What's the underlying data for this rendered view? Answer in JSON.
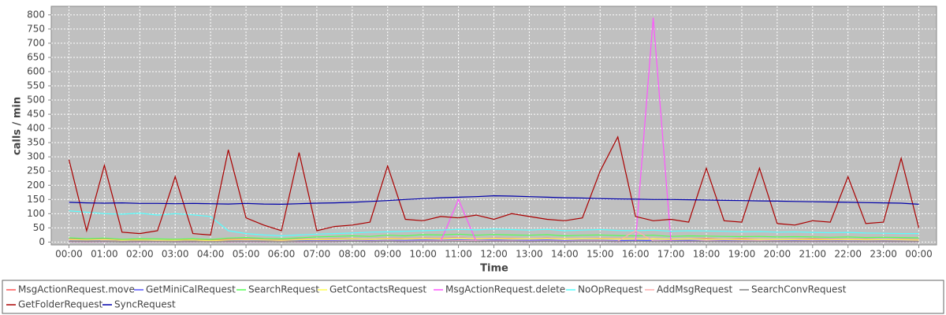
{
  "chart_data": {
    "type": "line",
    "ylabel": "calls / min",
    "xlabel": "Time",
    "x": [
      0,
      0.5,
      1,
      1.5,
      2,
      2.5,
      3,
      3.5,
      4,
      4.5,
      5,
      5.5,
      6,
      6.5,
      7,
      7.5,
      8,
      8.5,
      9,
      9.5,
      10,
      10.5,
      11,
      11.5,
      12,
      12.5,
      13,
      13.5,
      14,
      14.5,
      15,
      15.5,
      16,
      16.5,
      17,
      17.5,
      18,
      18.5,
      19,
      19.5,
      20,
      20.5,
      21,
      21.5,
      22,
      22.5,
      23,
      23.5,
      24
    ],
    "xlim": [
      -0.5,
      24.5
    ],
    "xticks": [
      {
        "value": 0,
        "label": "00:00"
      },
      {
        "value": 1,
        "label": "01:00"
      },
      {
        "value": 2,
        "label": "02:00"
      },
      {
        "value": 3,
        "label": "03:00"
      },
      {
        "value": 4,
        "label": "04:00"
      },
      {
        "value": 5,
        "label": "05:00"
      },
      {
        "value": 6,
        "label": "06:00"
      },
      {
        "value": 7,
        "label": "07:00"
      },
      {
        "value": 8,
        "label": "08:00"
      },
      {
        "value": 9,
        "label": "09:00"
      },
      {
        "value": 10,
        "label": "10:00"
      },
      {
        "value": 11,
        "label": "11:00"
      },
      {
        "value": 12,
        "label": "12:00"
      },
      {
        "value": 13,
        "label": "13:00"
      },
      {
        "value": 14,
        "label": "14:00"
      },
      {
        "value": 15,
        "label": "15:00"
      },
      {
        "value": 16,
        "label": "16:00"
      },
      {
        "value": 17,
        "label": "17:00"
      },
      {
        "value": 18,
        "label": "18:00"
      },
      {
        "value": 19,
        "label": "19:00"
      },
      {
        "value": 20,
        "label": "20:00"
      },
      {
        "value": 21,
        "label": "21:00"
      },
      {
        "value": 22,
        "label": "22:00"
      },
      {
        "value": 23,
        "label": "23:00"
      },
      {
        "value": 24,
        "label": "00:00"
      }
    ],
    "ylim": [
      -10,
      830
    ],
    "yticks": [
      0,
      50,
      100,
      150,
      200,
      250,
      300,
      350,
      400,
      450,
      500,
      550,
      600,
      650,
      700,
      750,
      800
    ],
    "grid": true,
    "series": [
      {
        "name": "MsgActionRequest.move",
        "color": "#ff5555",
        "values": [
          10,
          8,
          9,
          7,
          8,
          6,
          7,
          8,
          6,
          9,
          10,
          8,
          7,
          9,
          10,
          11,
          12,
          10,
          13,
          12,
          14,
          13,
          15,
          12,
          14,
          13,
          12,
          14,
          11,
          12,
          13,
          12,
          11,
          12,
          10,
          11,
          12,
          10,
          11,
          10,
          9,
          10,
          11,
          9,
          10,
          9,
          8,
          9,
          8
        ]
      },
      {
        "name": "GetMiniCalRequest",
        "color": "#5555ff",
        "values": [
          5,
          4,
          5,
          3,
          4,
          4,
          3,
          4,
          3,
          4,
          5,
          4,
          3,
          4,
          5,
          5,
          6,
          5,
          6,
          6,
          7,
          6,
          7,
          6,
          7,
          6,
          6,
          7,
          5,
          6,
          6,
          5,
          6,
          5,
          5,
          6,
          5,
          5,
          4,
          5,
          4,
          5,
          4,
          5,
          4,
          4,
          5,
          4,
          4
        ]
      },
      {
        "name": "SearchRequest",
        "color": "#55ff55",
        "values": [
          15,
          12,
          14,
          10,
          12,
          11,
          10,
          12,
          9,
          14,
          16,
          13,
          12,
          15,
          18,
          20,
          22,
          20,
          24,
          22,
          26,
          25,
          28,
          24,
          27,
          25,
          24,
          26,
          22,
          24,
          25,
          23,
          22,
          24,
          20,
          22,
          21,
          20,
          19,
          20,
          18,
          19,
          18,
          17,
          18,
          16,
          17,
          16,
          15
        ]
      },
      {
        "name": "GetContactsRequest",
        "color": "#ffff55",
        "values": [
          8,
          7,
          8,
          6,
          7,
          6,
          6,
          7,
          5,
          7,
          8,
          7,
          6,
          8,
          9,
          10,
          11,
          10,
          12,
          11,
          13,
          12,
          14,
          12,
          13,
          12,
          12,
          13,
          11,
          12,
          12,
          11,
          11,
          12,
          10,
          11,
          10,
          10,
          9,
          10,
          9,
          9,
          9,
          8,
          9,
          8,
          8,
          8,
          7
        ]
      },
      {
        "name": "MsgActionRequest.delete",
        "color": "#ff55ff",
        "values": [
          2,
          1,
          2,
          1,
          1,
          2,
          1,
          1,
          2,
          1,
          2,
          1,
          2,
          1,
          2,
          2,
          3,
          2,
          3,
          2,
          3,
          3,
          150,
          3,
          3,
          3,
          2,
          3,
          2,
          3,
          3,
          2,
          3,
          790,
          3,
          2,
          3,
          2,
          2,
          3,
          2,
          2,
          2,
          2,
          2,
          2,
          2,
          2,
          2
        ]
      },
      {
        "name": "NoOpRequest",
        "color": "#55ffff",
        "values": [
          110,
          105,
          100,
          98,
          102,
          95,
          100,
          96,
          90,
          40,
          30,
          25,
          22,
          25,
          28,
          30,
          32,
          35,
          36,
          38,
          40,
          42,
          45,
          43,
          46,
          44,
          42,
          45,
          40,
          42,
          44,
          41,
          40,
          42,
          38,
          40,
          39,
          38,
          36,
          37,
          35,
          36,
          34,
          33,
          34,
          32,
          31,
          30,
          30
        ]
      },
      {
        "name": "AddMsgRequest",
        "color": "#ffafaf",
        "values": [
          3,
          2,
          3,
          2,
          2,
          3,
          2,
          2,
          3,
          2,
          3,
          2,
          3,
          2,
          3,
          3,
          4,
          3,
          4,
          3,
          4,
          4,
          5,
          4,
          4,
          4,
          3,
          4,
          3,
          4,
          4,
          3,
          40,
          4,
          3,
          3,
          4,
          3,
          3,
          4,
          3,
          3,
          3,
          3,
          3,
          3,
          3,
          3,
          3
        ]
      },
      {
        "name": "SearchConvRequest",
        "color": "#808080",
        "values": [
          2,
          2,
          2,
          1,
          2,
          2,
          1,
          2,
          1,
          2,
          2,
          2,
          1,
          2,
          2,
          2,
          3,
          2,
          3,
          2,
          3,
          3,
          3,
          2,
          3,
          3,
          2,
          3,
          2,
          3,
          3,
          2,
          3,
          2,
          2,
          3,
          2,
          2,
          2,
          2,
          2,
          2,
          2,
          2,
          2,
          2,
          2,
          2,
          2
        ]
      },
      {
        "name": "GetFolderRequest",
        "color": "#aa0000",
        "values": [
          290,
          40,
          270,
          35,
          30,
          40,
          230,
          30,
          25,
          325,
          85,
          60,
          40,
          315,
          40,
          55,
          60,
          70,
          268,
          80,
          75,
          90,
          85,
          95,
          80,
          100,
          90,
          80,
          75,
          85,
          250,
          370,
          90,
          75,
          80,
          70,
          260,
          75,
          70,
          260,
          65,
          60,
          75,
          70,
          230,
          65,
          70,
          295,
          50
        ]
      },
      {
        "name": "SyncRequest",
        "color": "#0000aa",
        "values": [
          140,
          138,
          137,
          138,
          136,
          136,
          135,
          136,
          135,
          134,
          136,
          134,
          133,
          135,
          137,
          138,
          140,
          143,
          146,
          150,
          153,
          156,
          158,
          160,
          163,
          162,
          160,
          158,
          156,
          155,
          153,
          152,
          151,
          150,
          150,
          149,
          148,
          147,
          146,
          145,
          144,
          143,
          142,
          141,
          140,
          139,
          138,
          137,
          133
        ]
      }
    ]
  }
}
